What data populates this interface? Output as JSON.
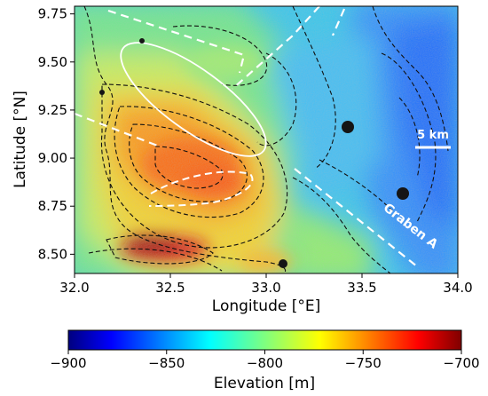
{
  "map": {
    "x_axis": {
      "label": "Longitude [°E]",
      "ticks": [
        {
          "value": 32.0,
          "label": "32.0"
        },
        {
          "value": 32.5,
          "label": "32.5"
        },
        {
          "value": 33.0,
          "label": "33.0"
        },
        {
          "value": 33.5,
          "label": "33.5"
        },
        {
          "value": 34.0,
          "label": "34.0"
        }
      ],
      "range": [
        32.0,
        34.0
      ]
    },
    "y_axis": {
      "label": "Latitude [°N]",
      "ticks": [
        {
          "value": 8.5,
          "label": "8.50"
        },
        {
          "value": 8.75,
          "label": "8.75"
        },
        {
          "value": 9.0,
          "label": "9.00"
        },
        {
          "value": 9.25,
          "label": "9.25"
        },
        {
          "value": 9.5,
          "label": "9.50"
        },
        {
          "value": 9.75,
          "label": "9.75"
        }
      ],
      "range": [
        8.4,
        9.79
      ]
    },
    "scale_bar_label": "5 km",
    "feature_label": "Graben A",
    "colorbar": {
      "label": "Elevation [m]",
      "colormap": "jet",
      "range": [
        -900,
        -700
      ],
      "ticks": [
        {
          "value": -900,
          "label": "−900"
        },
        {
          "value": -850,
          "label": "−850"
        },
        {
          "value": -800,
          "label": "−800"
        },
        {
          "value": -750,
          "label": "−750"
        },
        {
          "value": -700,
          "label": "−700"
        }
      ]
    },
    "colors": {
      "contour": "#111111",
      "annotation": "#ffffff",
      "jet_stops": [
        "#00007f",
        "#0000ff",
        "#007fff",
        "#00ffff",
        "#7fff7f",
        "#ffff00",
        "#ff7f00",
        "#ff0000",
        "#7f0000"
      ]
    }
  }
}
